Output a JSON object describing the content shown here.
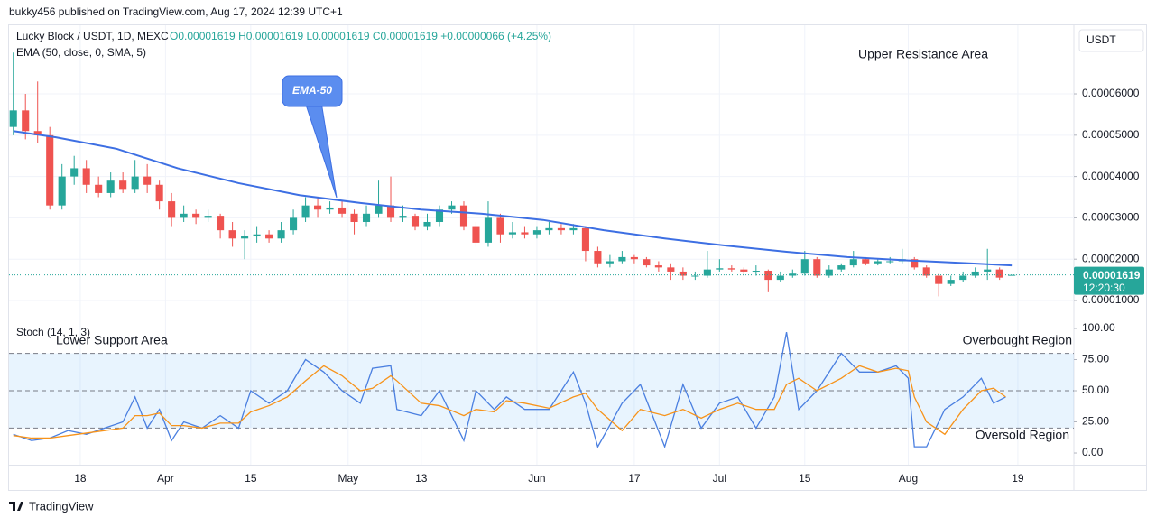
{
  "header": "bukky456 published on TradingView.com, Aug 17, 2024 12:39 UTC+1",
  "footer": "TradingView",
  "chart_data": [
    {
      "type": "candlestick",
      "title": "Lucky Block / USDT, 1D, MEXC",
      "ohlc_legend": "O0.00001619 H0.00001619 L0.00001619 C0.00001619 +0.00000066 (+4.25%)",
      "currency": "USDT",
      "last_price_label": "0.00001619",
      "countdown": "12:20:30",
      "x": [
        3,
        5,
        7,
        9,
        11,
        13,
        15,
        17,
        19,
        21,
        23,
        25,
        27,
        29,
        31,
        33,
        35,
        37,
        39,
        41,
        43,
        45,
        47,
        49,
        51,
        53,
        55,
        57,
        59,
        61,
        63,
        65,
        67,
        69,
        71,
        73,
        75,
        77,
        79,
        81,
        83,
        85,
        87,
        89,
        91,
        93,
        95,
        97,
        99,
        101,
        103,
        105,
        107,
        109,
        111,
        113,
        115,
        117,
        119,
        121,
        123,
        125,
        127,
        129,
        131,
        133,
        135,
        137,
        139,
        141,
        143,
        145,
        147,
        149,
        151,
        153,
        155,
        157,
        159,
        161,
        163,
        165,
        167
      ],
      "open": [
        5.2e-05,
        5.6e-05,
        5.1e-05,
        5e-05,
        3.3e-05,
        4e-05,
        4.2e-05,
        3.8e-05,
        3.6e-05,
        3.9e-05,
        3.7e-05,
        4e-05,
        3.8e-05,
        3.4e-05,
        3e-05,
        3.1e-05,
        3e-05,
        3.05e-05,
        2.7e-05,
        2.5e-05,
        2.55e-05,
        2.6e-05,
        2.5e-05,
        2.7e-05,
        3e-05,
        3.3e-05,
        3.2e-05,
        3.25e-05,
        3.1e-05,
        2.9e-05,
        3.1e-05,
        3.3e-05,
        3e-05,
        3.05e-05,
        2.8e-05,
        2.9e-05,
        3.2e-05,
        3.3e-05,
        2.8e-05,
        2.4e-05,
        3e-05,
        2.6e-05,
        2.65e-05,
        2.6e-05,
        2.7e-05,
        2.75e-05,
        2.7e-05,
        2.75e-05,
        2.2e-05,
        1.9e-05,
        1.95e-05,
        2.05e-05,
        2e-05,
        1.85e-05,
        1.8e-05,
        1.7e-05,
        1.6e-05,
        1.6e-05,
        1.75e-05,
        1.78e-05,
        1.75e-05,
        1.7e-05,
        1.72e-05,
        1.5e-05,
        1.6e-05,
        1.65e-05,
        2e-05,
        1.6e-05,
        1.75e-05,
        1.85e-05,
        2e-05,
        1.9e-05,
        1.95e-05,
        1.95e-05,
        2e-05,
        1.8e-05,
        1.6e-05,
        1.4e-05,
        1.5e-05,
        1.6e-05,
        1.7e-05,
        1.75e-05,
        1.619e-05
      ],
      "high": [
        7e-05,
        6e-05,
        6.3e-05,
        5.2e-05,
        4.3e-05,
        4.5e-05,
        4.4e-05,
        4e-05,
        4.1e-05,
        4.1e-05,
        4.4e-05,
        4.3e-05,
        3.9e-05,
        3.6e-05,
        3.3e-05,
        3.2e-05,
        3.2e-05,
        3.1e-05,
        2.9e-05,
        2.7e-05,
        2.8e-05,
        2.7e-05,
        2.9e-05,
        3.2e-05,
        3.5e-05,
        3.5e-05,
        3.4e-05,
        3.4e-05,
        3.2e-05,
        3.3e-05,
        3.9e-05,
        4e-05,
        3.3e-05,
        3.1e-05,
        3.1e-05,
        3.3e-05,
        3.4e-05,
        3.4e-05,
        2.9e-05,
        3.4e-05,
        3.1e-05,
        2.9e-05,
        2.8e-05,
        2.8e-05,
        2.9e-05,
        2.85e-05,
        2.85e-05,
        2.8e-05,
        2.3e-05,
        2.1e-05,
        2.2e-05,
        2.1e-05,
        2.05e-05,
        1.95e-05,
        1.9e-05,
        1.8e-05,
        1.7e-05,
        2.2e-05,
        2e-05,
        1.85e-05,
        1.8e-05,
        1.85e-05,
        1.75e-05,
        1.7e-05,
        1.75e-05,
        2.2e-05,
        2.05e-05,
        1.85e-05,
        1.9e-05,
        2.2e-05,
        2.05e-05,
        2e-05,
        2.05e-05,
        2.25e-05,
        2.05e-05,
        1.85e-05,
        1.65e-05,
        1.6e-05,
        1.7e-05,
        1.8e-05,
        2.25e-05,
        1.8e-05,
        1.619e-05
      ],
      "low": [
        5e-05,
        4.9e-05,
        4.8e-05,
        3.2e-05,
        3.2e-05,
        3.8e-05,
        3.6e-05,
        3.5e-05,
        3.5e-05,
        3.6e-05,
        3.6e-05,
        3.6e-05,
        3.2e-05,
        2.8e-05,
        2.9e-05,
        2.85e-05,
        2.9e-05,
        2.5e-05,
        2.3e-05,
        2e-05,
        2.4e-05,
        2.4e-05,
        2.4e-05,
        2.6e-05,
        2.9e-05,
        3e-05,
        3.1e-05,
        3e-05,
        2.6e-05,
        2.8e-05,
        3e-05,
        2.9e-05,
        2.9e-05,
        2.7e-05,
        2.7e-05,
        2.8e-05,
        3.1e-05,
        2.7e-05,
        2.3e-05,
        2.3e-05,
        2.4e-05,
        2.5e-05,
        2.5e-05,
        2.5e-05,
        2.6e-05,
        2.6e-05,
        2.6e-05,
        1.95e-05,
        1.8e-05,
        1.8e-05,
        1.9e-05,
        1.9e-05,
        1.8e-05,
        1.7e-05,
        1.5e-05,
        1.5e-05,
        1.5e-05,
        1.55e-05,
        1.7e-05,
        1.7e-05,
        1.6e-05,
        1.6e-05,
        1.2e-05,
        1.45e-05,
        1.55e-05,
        1.6e-05,
        1.55e-05,
        1.55e-05,
        1.7e-05,
        1.8e-05,
        1.85e-05,
        1.85e-05,
        1.9e-05,
        1.9e-05,
        1.75e-05,
        1.55e-05,
        1.1e-05,
        1.35e-05,
        1.45e-05,
        1.55e-05,
        1.5e-05,
        1.5e-05,
        1.619e-05
      ],
      "close": [
        5.6e-05,
        5.1e-05,
        5e-05,
        3.3e-05,
        4e-05,
        4.2e-05,
        3.8e-05,
        3.6e-05,
        3.9e-05,
        3.7e-05,
        4e-05,
        3.8e-05,
        3.4e-05,
        3e-05,
        3.1e-05,
        3e-05,
        3.05e-05,
        2.7e-05,
        2.5e-05,
        2.55e-05,
        2.6e-05,
        2.5e-05,
        2.7e-05,
        3e-05,
        3.3e-05,
        3.2e-05,
        3.25e-05,
        3.1e-05,
        2.9e-05,
        3.1e-05,
        3.3e-05,
        3e-05,
        3.05e-05,
        2.8e-05,
        2.9e-05,
        3.2e-05,
        3.3e-05,
        2.8e-05,
        2.4e-05,
        3e-05,
        2.6e-05,
        2.65e-05,
        2.6e-05,
        2.7e-05,
        2.75e-05,
        2.7e-05,
        2.75e-05,
        2.2e-05,
        1.9e-05,
        1.95e-05,
        2.05e-05,
        2e-05,
        1.85e-05,
        1.8e-05,
        1.7e-05,
        1.6e-05,
        1.6e-05,
        1.75e-05,
        1.78e-05,
        1.75e-05,
        1.7e-05,
        1.72e-05,
        1.5e-05,
        1.6e-05,
        1.65e-05,
        2e-05,
        1.6e-05,
        1.75e-05,
        1.85e-05,
        2e-05,
        1.9e-05,
        1.95e-05,
        1.95e-05,
        2e-05,
        1.8e-05,
        1.6e-05,
        1.4e-05,
        1.5e-05,
        1.6e-05,
        1.7e-05,
        1.75e-05,
        1.553e-05,
        1.619e-05
      ],
      "up_color": "#26a69a",
      "down_color": "#ef5350",
      "grid": true,
      "xlim": [
        2.3,
        177.2
      ],
      "xticks": [
        {
          "value": 14,
          "label": "18"
        },
        {
          "value": 28,
          "label": "Apr"
        },
        {
          "value": 42,
          "label": "15"
        },
        {
          "value": 58,
          "label": "May"
        },
        {
          "value": 70,
          "label": "13"
        },
        {
          "value": 89,
          "label": "Jun"
        },
        {
          "value": 105,
          "label": "17"
        },
        {
          "value": 119,
          "label": "Jul"
        },
        {
          "value": 133,
          "label": "15"
        },
        {
          "value": 150,
          "label": "Aug"
        },
        {
          "value": 168,
          "label": "19"
        }
      ],
      "ylim": [
        5.85e-06,
        7.66e-05
      ],
      "yticks": [
        {
          "value": 1e-05,
          "label": "0.00001000"
        },
        {
          "value": 2e-05,
          "label": "0.00002000"
        },
        {
          "value": 3e-05,
          "label": "0.00003000"
        },
        {
          "value": 4e-05,
          "label": "0.00004000"
        },
        {
          "value": 5e-05,
          "label": "0.00005000"
        },
        {
          "value": 6e-05,
          "label": "0.00006000"
        }
      ],
      "overlay": {
        "name": "EMA (50, close, 0, SMA, 5)",
        "color": "#3d6fe3",
        "x": [
          3,
          10,
          20,
          30,
          40,
          50,
          60,
          70,
          80,
          90,
          100,
          110,
          120,
          130,
          140,
          150,
          160,
          167
        ],
        "values": [
          5.1e-05,
          4.95e-05,
          4.67e-05,
          4.2e-05,
          3.84e-05,
          3.55e-05,
          3.36e-05,
          3.2e-05,
          3.1e-05,
          2.95e-05,
          2.7e-05,
          2.5e-05,
          2.33e-05,
          2.18e-05,
          2.05e-05,
          1.97e-05,
          1.9e-05,
          1.85e-05
        ]
      },
      "annotations": [
        "EMA-50",
        "Upper Resistance Area"
      ]
    },
    {
      "type": "line",
      "title": "Stoch (14, 1, 3)",
      "xlim": [
        2.3,
        177.2
      ],
      "x": [
        3,
        6,
        9,
        12,
        15,
        18,
        21,
        23,
        25,
        27,
        29,
        31,
        34,
        37,
        40,
        42,
        45,
        48,
        51,
        54,
        57,
        60,
        62,
        65,
        66,
        70,
        73,
        77,
        79,
        82,
        84,
        87,
        91,
        95,
        97,
        99,
        103,
        106,
        110,
        113,
        116,
        119,
        122,
        125,
        128,
        130,
        132,
        135,
        139,
        142,
        145,
        148,
        150,
        151,
        153,
        156,
        159,
        162,
        164,
        166
      ],
      "series": [
        {
          "color": "#4a7fe0",
          "values": [
            15,
            10,
            12,
            18,
            15,
            20,
            25,
            45,
            20,
            35,
            10,
            25,
            20,
            30,
            20,
            50,
            40,
            50,
            75,
            65,
            50,
            40,
            68,
            70,
            35,
            30,
            50,
            10,
            50,
            35,
            45,
            35,
            35,
            65,
            40,
            5,
            40,
            55,
            5,
            55,
            20,
            40,
            45,
            20,
            45,
            97,
            35,
            50,
            80,
            65,
            65,
            70,
            60,
            5,
            5,
            35,
            45,
            60,
            40,
            45
          ]
        },
        {
          "color": "#f7931a",
          "values": [
            14,
            12,
            12,
            14,
            16,
            18,
            20,
            30,
            30,
            32,
            22,
            22,
            20,
            24,
            24,
            33,
            38,
            45,
            58,
            70,
            62,
            50,
            52,
            62,
            58,
            40,
            38,
            30,
            35,
            33,
            42,
            40,
            36,
            45,
            48,
            35,
            18,
            35,
            30,
            35,
            28,
            35,
            40,
            35,
            35,
            55,
            60,
            50,
            60,
            70,
            65,
            68,
            66,
            45,
            25,
            15,
            35,
            50,
            52,
            45
          ]
        }
      ],
      "ylim": [
        -9.4,
        106.5
      ],
      "yticks": [
        {
          "value": 0,
          "label": "0.00"
        },
        {
          "value": 25,
          "label": "25.00"
        },
        {
          "value": 50,
          "label": "50.00"
        },
        {
          "value": 75,
          "label": "75.00"
        },
        {
          "value": 100,
          "label": "100.00"
        }
      ],
      "levels": [
        20,
        50,
        80
      ],
      "annotations": [
        "Lower Support Area",
        "Overbought Region",
        "Oversold Region"
      ]
    }
  ]
}
